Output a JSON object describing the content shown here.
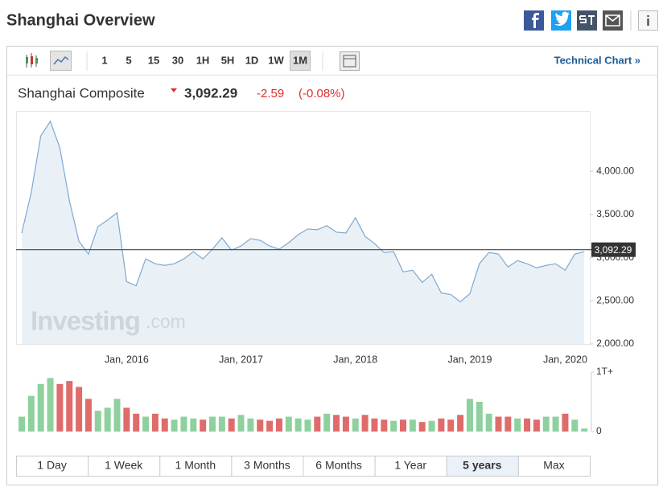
{
  "header": {
    "title": "Shanghai Overview"
  },
  "toolbar": {
    "intervals": [
      "1",
      "5",
      "15",
      "30",
      "1H",
      "5H",
      "1D",
      "1W",
      "1M"
    ],
    "active_interval": "1M",
    "technical_chart": "Technical Chart »"
  },
  "quote": {
    "name": "Shanghai Composite",
    "price": "3,092.29",
    "change": "-2.59",
    "change_pct": "(-0.08%)"
  },
  "chart_data": {
    "type": "area",
    "color": "#7fa9d1",
    "fill": "#e3edf5",
    "watermark": [
      "Investing",
      ".com"
    ],
    "categories": [
      null,
      null,
      null,
      null,
      null,
      null,
      null,
      null,
      null,
      null,
      null,
      "Jan, 2016",
      null,
      null,
      null,
      null,
      null,
      null,
      null,
      null,
      null,
      null,
      null,
      "Jan, 2017",
      null,
      null,
      null,
      null,
      null,
      null,
      null,
      null,
      null,
      null,
      null,
      "Jan, 2018",
      null,
      null,
      null,
      null,
      null,
      null,
      null,
      null,
      null,
      null,
      null,
      "Jan, 2019",
      null,
      null,
      null,
      null,
      null,
      null,
      null,
      null,
      null,
      "Jan, 2020",
      null,
      null
    ],
    "values": [
      3285,
      3754,
      4411,
      4580,
      4270,
      3660,
      3191,
      3041,
      3360,
      3435,
      3520,
      2722,
      2675,
      2985,
      2929,
      2910,
      2929,
      2985,
      3069,
      2985,
      3098,
      3229,
      3088,
      3135,
      3220,
      3201,
      3135,
      3098,
      3173,
      3266,
      3332,
      3323,
      3370,
      3295,
      3285,
      3463,
      3248,
      3163,
      3060,
      3069,
      2835,
      2854,
      2713,
      2807,
      2591,
      2572,
      2488,
      2582,
      2929,
      3060,
      3041,
      2891,
      2966,
      2929,
      2882,
      2910,
      2929,
      2854,
      3041,
      3069
    ],
    "ylim": [
      2000,
      4700
    ],
    "yticks": [
      {
        "value": 2000,
        "label": "2,000.00"
      },
      {
        "value": 2500,
        "label": "2,500.00"
      },
      {
        "value": 3000,
        "label": "3,000.00"
      },
      {
        "value": 3500,
        "label": "3,500.00"
      },
      {
        "value": 4000,
        "label": "4,000.00"
      }
    ],
    "last": {
      "value": 3092.29,
      "label": "3,092.29"
    },
    "volume": {
      "up_color": "#8fd19e",
      "down_color": "#e06b6b",
      "values": [
        0.25,
        0.6,
        0.8,
        0.9,
        0.8,
        0.85,
        0.75,
        0.55,
        0.35,
        0.4,
        0.55,
        0.4,
        0.3,
        0.25,
        0.3,
        0.22,
        0.2,
        0.25,
        0.22,
        0.2,
        0.25,
        0.25,
        0.22,
        0.28,
        0.22,
        0.2,
        0.18,
        0.22,
        0.25,
        0.22,
        0.2,
        0.25,
        0.3,
        0.28,
        0.25,
        0.22,
        0.28,
        0.22,
        0.2,
        0.18,
        0.2,
        0.2,
        0.16,
        0.18,
        0.22,
        0.2,
        0.28,
        0.55,
        0.5,
        0.3,
        0.25,
        0.25,
        0.22,
        0.22,
        0.2,
        0.25,
        0.25,
        0.3,
        0.2,
        0.05
      ],
      "ylim": [
        0,
        1
      ],
      "yticks": [
        0,
        {
          "value": 1,
          "label": "1T+"
        }
      ]
    }
  },
  "ranges": {
    "options": [
      "1 Day",
      "1 Week",
      "1 Month",
      "3 Months",
      "6 Months",
      "1 Year",
      "5 years",
      "Max"
    ],
    "active": "5 years"
  }
}
